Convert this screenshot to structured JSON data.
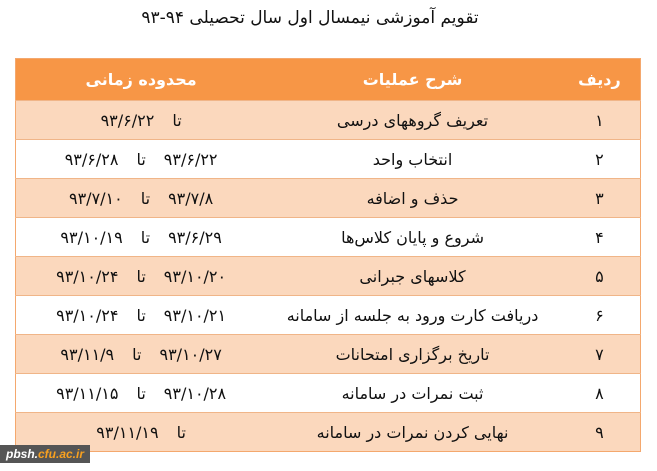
{
  "title": "تقویم آموزشی نیمسال اول سال تحصیلی ۹۴-۹۳",
  "headers": {
    "row": "ردیف",
    "desc": "شرح عملیات",
    "range": "محدوده زمانی"
  },
  "to_word": "تا",
  "rows": [
    {
      "num": "۱",
      "desc": "تعریف گروههای درسی",
      "from": "",
      "to": "۹۳/۶/۲۲"
    },
    {
      "num": "۲",
      "desc": "انتخاب واحد",
      "from": "۹۳/۶/۲۲",
      "to": "۹۳/۶/۲۸"
    },
    {
      "num": "۳",
      "desc": "حذف و اضافه",
      "from": "۹۳/۷/۸",
      "to": "۹۳/۷/۱۰"
    },
    {
      "num": "۴",
      "desc": "شروع و پایان کلاس‌ها",
      "from": "۹۳/۶/۲۹",
      "to": "۹۳/۱۰/۱۹"
    },
    {
      "num": "۵",
      "desc": "کلاسهای جبرانی",
      "from": "۹۳/۱۰/۲۰",
      "to": "۹۳/۱۰/۲۴"
    },
    {
      "num": "۶",
      "desc": "دریافت کارت ورود به جلسه از سامانه",
      "from": "۹۳/۱۰/۲۱",
      "to": "۹۳/۱۰/۲۴"
    },
    {
      "num": "۷",
      "desc": "تاریخ برگزاری امتحانات",
      "from": "۹۳/۱۰/۲۷",
      "to": "۹۳/۱۱/۹"
    },
    {
      "num": "۸",
      "desc": "ثبت نمرات در سامانه",
      "from": "۹۳/۱۰/۲۸",
      "to": "۹۳/۱۱/۱۵"
    },
    {
      "num": "۹",
      "desc": "نهایی کردن نمرات در سامانه",
      "from": "",
      "to": "۹۳/۱۱/۱۹"
    }
  ],
  "watermark": {
    "part1": "pbsh.",
    "part2": "cfu.ac.ir"
  },
  "colors": {
    "header": "#f79646",
    "alt_row": "#fbd8bd"
  }
}
